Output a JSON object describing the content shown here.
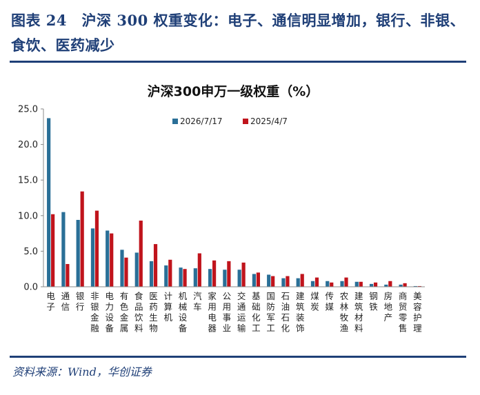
{
  "figure": {
    "title": "图表 24　沪深 300 权重变化：电子、通信明显增加，银行、非银、食饮、医药减少",
    "source": "资料来源：Wind，华创证券"
  },
  "chart_data": {
    "type": "bar",
    "title": "沪深300申万一级权重（%）",
    "ylim": [
      0,
      25
    ],
    "yticks": [
      "0.0",
      "5.0",
      "10.0",
      "15.0",
      "20.0",
      "25.0"
    ],
    "grid": false,
    "legend_position": "top",
    "categories": [
      "电子",
      "通信",
      "银行",
      "非银金融",
      "电力设备",
      "有色金属",
      "食品饮料",
      "医药生物",
      "计算机",
      "机械设备",
      "汽车",
      "家用电器",
      "公用事业",
      "交通运输",
      "基础化工",
      "国防军工",
      "石油石化",
      "建筑装饰",
      "煤炭",
      "传媒",
      "农林牧渔",
      "建筑材料",
      "钢铁",
      "房地产",
      "商贸零售",
      "美容护理"
    ],
    "series": [
      {
        "name": "2026/7/17",
        "color": "#2a6f97",
        "values": [
          23.7,
          10.5,
          9.4,
          8.2,
          7.9,
          5.2,
          4.8,
          3.6,
          3.0,
          2.7,
          2.6,
          2.5,
          2.4,
          2.4,
          1.8,
          1.7,
          1.2,
          1.2,
          0.8,
          0.8,
          0.8,
          0.7,
          0.4,
          0.3,
          0.3,
          0.1
        ]
      },
      {
        "name": "2025/4/7",
        "color": "#c0141c",
        "values": [
          10.2,
          3.2,
          13.4,
          10.7,
          7.5,
          4.1,
          9.3,
          6.0,
          3.8,
          2.5,
          4.7,
          3.7,
          3.6,
          3.4,
          2.0,
          1.5,
          1.5,
          1.8,
          1.3,
          0.6,
          1.3,
          0.7,
          0.6,
          0.8,
          0.5,
          0.1
        ]
      }
    ]
  }
}
